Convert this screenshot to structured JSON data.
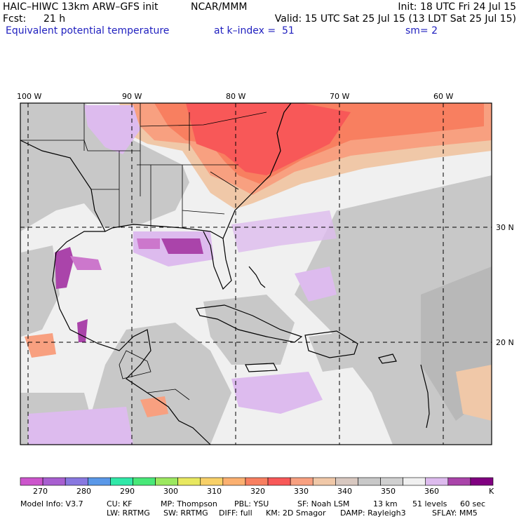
{
  "header": {
    "model": "HAIC–HIWC 13km ARW–GFS init",
    "org": "NCAR/MMM",
    "init": "Init: 18 UTC Fri 24 Jul 15",
    "fcst_label": "Fcst:",
    "fcst_value": "21 h",
    "valid": "Valid: 15 UTC Sat 25 Jul 15 (13 LDT Sat 25 Jul 15)",
    "field": "Equivalent potential temperature",
    "level": "at k–index =  51",
    "smooth": "sm= 2"
  },
  "map": {
    "lon_labels": [
      "100 W",
      "90 W",
      "80 W",
      "70 W",
      "60 W"
    ],
    "lat_labels": [
      "30 N",
      "20 N"
    ]
  },
  "colorbar": {
    "unit": "K",
    "tick_labels": [
      "270",
      "280",
      "290",
      "300",
      "310",
      "320",
      "330",
      "340",
      "350",
      "360"
    ],
    "colors": [
      "#cc55cc",
      "#a85fd0",
      "#8878e0",
      "#5a98e8",
      "#30e8a8",
      "#48e878",
      "#9ce860",
      "#e8e860",
      "#f8d068",
      "#fbb070",
      "#f87f60",
      "#f85858",
      "#f8a080",
      "#f0c8a8",
      "#d8c8c0",
      "#c8c8c8",
      "#d0d0d0",
      "#f0f0f0",
      "#ddbbee",
      "#aa44aa",
      "#800080"
    ]
  },
  "footer": {
    "line1": [
      "Model Info: V3.7",
      "CU: KF",
      "MP: Thompson",
      "PBL: YSU",
      "SF: Noah LSM",
      "13 km",
      "51 levels",
      "60 sec"
    ],
    "line2": [
      "LW: RRTMG",
      "SW: RRTMG",
      "DIFF: full",
      "KM: 2D Smagor",
      "DAMP: Rayleigh3",
      "SFLAY: MM5"
    ]
  }
}
